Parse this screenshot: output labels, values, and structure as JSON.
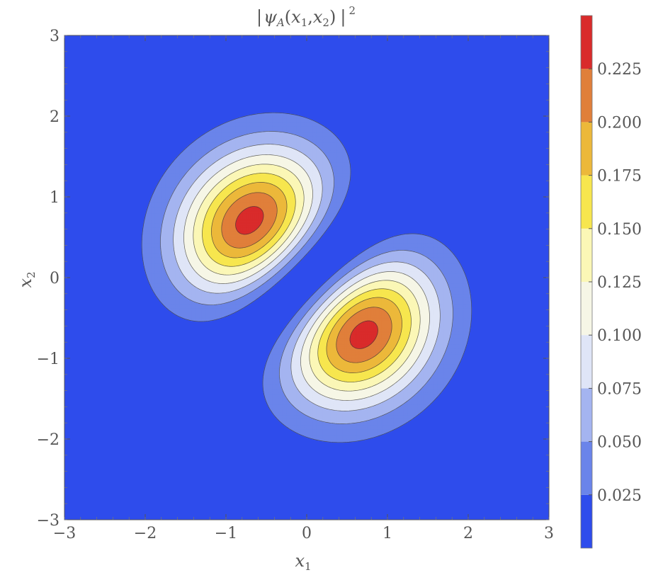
{
  "chart_data": {
    "type": "heatmap",
    "subtype": "filled-contour",
    "title": "|ψ_A(x_1,x_2)|^2",
    "title_parts": {
      "bar_l": "|",
      "psi": "ψ",
      "sub_A": "A",
      "open": "(",
      "x": "x",
      "sub_1": "1",
      "comma": ",",
      "x2": "x",
      "sub_2": "2",
      "close": ")",
      "bar_r": "|",
      "sup_2": "2"
    },
    "xlabel": "x_1",
    "xlabel_parts": {
      "x": "x",
      "sub": "1"
    },
    "ylabel": "x_2",
    "ylabel_parts": {
      "x": "x",
      "sub": "2"
    },
    "xlim": [
      -3,
      3
    ],
    "ylim": [
      -3,
      3
    ],
    "x_ticks": [
      "−3",
      "−2",
      "−1",
      "0",
      "1",
      "2",
      "3"
    ],
    "y_ticks": [
      "−3",
      "−2",
      "−1",
      "0",
      "1",
      "2",
      "3"
    ],
    "x_tick_values": [
      -3,
      -2,
      -1,
      0,
      1,
      2,
      3
    ],
    "y_tick_values": [
      -3,
      -2,
      -1,
      0,
      1,
      2,
      3
    ],
    "peaks": [
      {
        "x1": -0.71,
        "x2": 0.71,
        "value": 0.234
      },
      {
        "x1": 0.71,
        "x2": -0.71,
        "value": 0.234
      }
    ],
    "contour_levels": [
      0.025,
      0.05,
      0.075,
      0.1,
      0.125,
      0.15,
      0.175,
      0.2,
      0.225
    ],
    "colorbar": {
      "range": [
        0,
        0.25
      ],
      "tick_values": [
        0.025,
        0.05,
        0.075,
        0.1,
        0.125,
        0.15,
        0.175,
        0.2,
        0.225
      ],
      "tick_labels": [
        "0.025",
        "0.050",
        "0.075",
        "0.100",
        "0.125",
        "0.150",
        "0.175",
        "0.200",
        "0.225"
      ],
      "colors": [
        "#2e4cec",
        "#6a84ea",
        "#a4b4f0",
        "#dfe5f7",
        "#f6f6e6",
        "#fbf7b6",
        "#f7e64e",
        "#ecb83a",
        "#e07f3a",
        "#d92b2b"
      ]
    },
    "grid": false
  }
}
